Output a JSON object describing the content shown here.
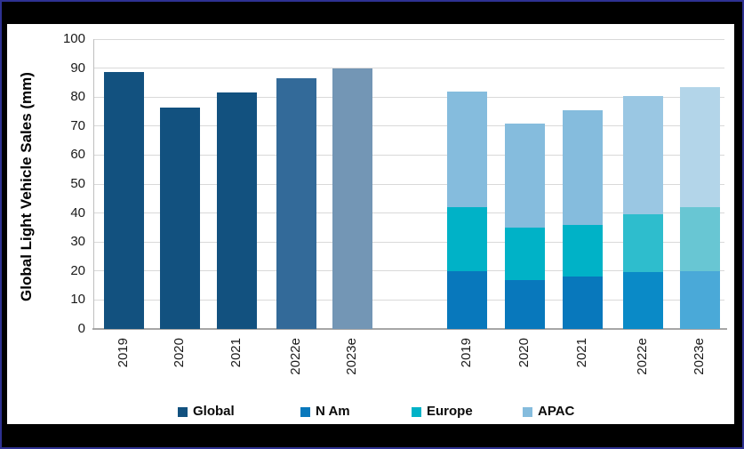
{
  "frame": {
    "border_color": "#2e3192",
    "background_color": "#000000",
    "panel_color": "#ffffff"
  },
  "chart_data": {
    "type": "bar",
    "title": "",
    "ylabel": "Global Light Vehicle Sales (mm)",
    "xlabel": "",
    "ylim": [
      0,
      100
    ],
    "ytick_step": 10,
    "yticks": [
      0,
      10,
      20,
      30,
      40,
      50,
      60,
      70,
      80,
      90,
      100
    ],
    "grid": true,
    "legend_position": "bottom",
    "groups": [
      {
        "name": "global-totals",
        "stacked": false,
        "categories": [
          "2019",
          "2020",
          "2021",
          "2022e",
          "2023e"
        ],
        "series": [
          {
            "name": "Global",
            "values": [
              88.5,
              76.5,
              81.5,
              86.5,
              90
            ],
            "bar_colors": [
              "#12517f",
              "#12517f",
              "#12517f",
              "#336a99",
              "#7396b5"
            ]
          }
        ]
      },
      {
        "name": "regional-stacked",
        "stacked": true,
        "categories": [
          "2019",
          "2020",
          "2021",
          "2022e",
          "2023e"
        ],
        "series": [
          {
            "name": "N Am",
            "values": [
              20,
              17,
              18,
              19.5,
              20
            ],
            "bar_colors": [
              "#0878bc",
              "#0878bc",
              "#0878bc",
              "#0a8ac7",
              "#4aa9d8"
            ]
          },
          {
            "name": "Europe",
            "values": [
              22,
              18,
              18,
              20,
              22
            ],
            "bar_colors": [
              "#00b2c7",
              "#00b2c7",
              "#00b2c7",
              "#2ebdcd",
              "#68c6d3"
            ]
          },
          {
            "name": "APAC",
            "values": [
              40,
              36,
              39.5,
              41,
              41.5
            ],
            "bar_colors": [
              "#85bcdd",
              "#85bcdd",
              "#85bcdd",
              "#9ac7e3",
              "#b3d5e9"
            ]
          }
        ]
      }
    ],
    "legend": [
      {
        "label": "Global",
        "color": "#12517f"
      },
      {
        "label": "N Am",
        "color": "#0878bc"
      },
      {
        "label": "Europe",
        "color": "#00b2c7"
      },
      {
        "label": "APAC",
        "color": "#85bcdd"
      }
    ]
  }
}
